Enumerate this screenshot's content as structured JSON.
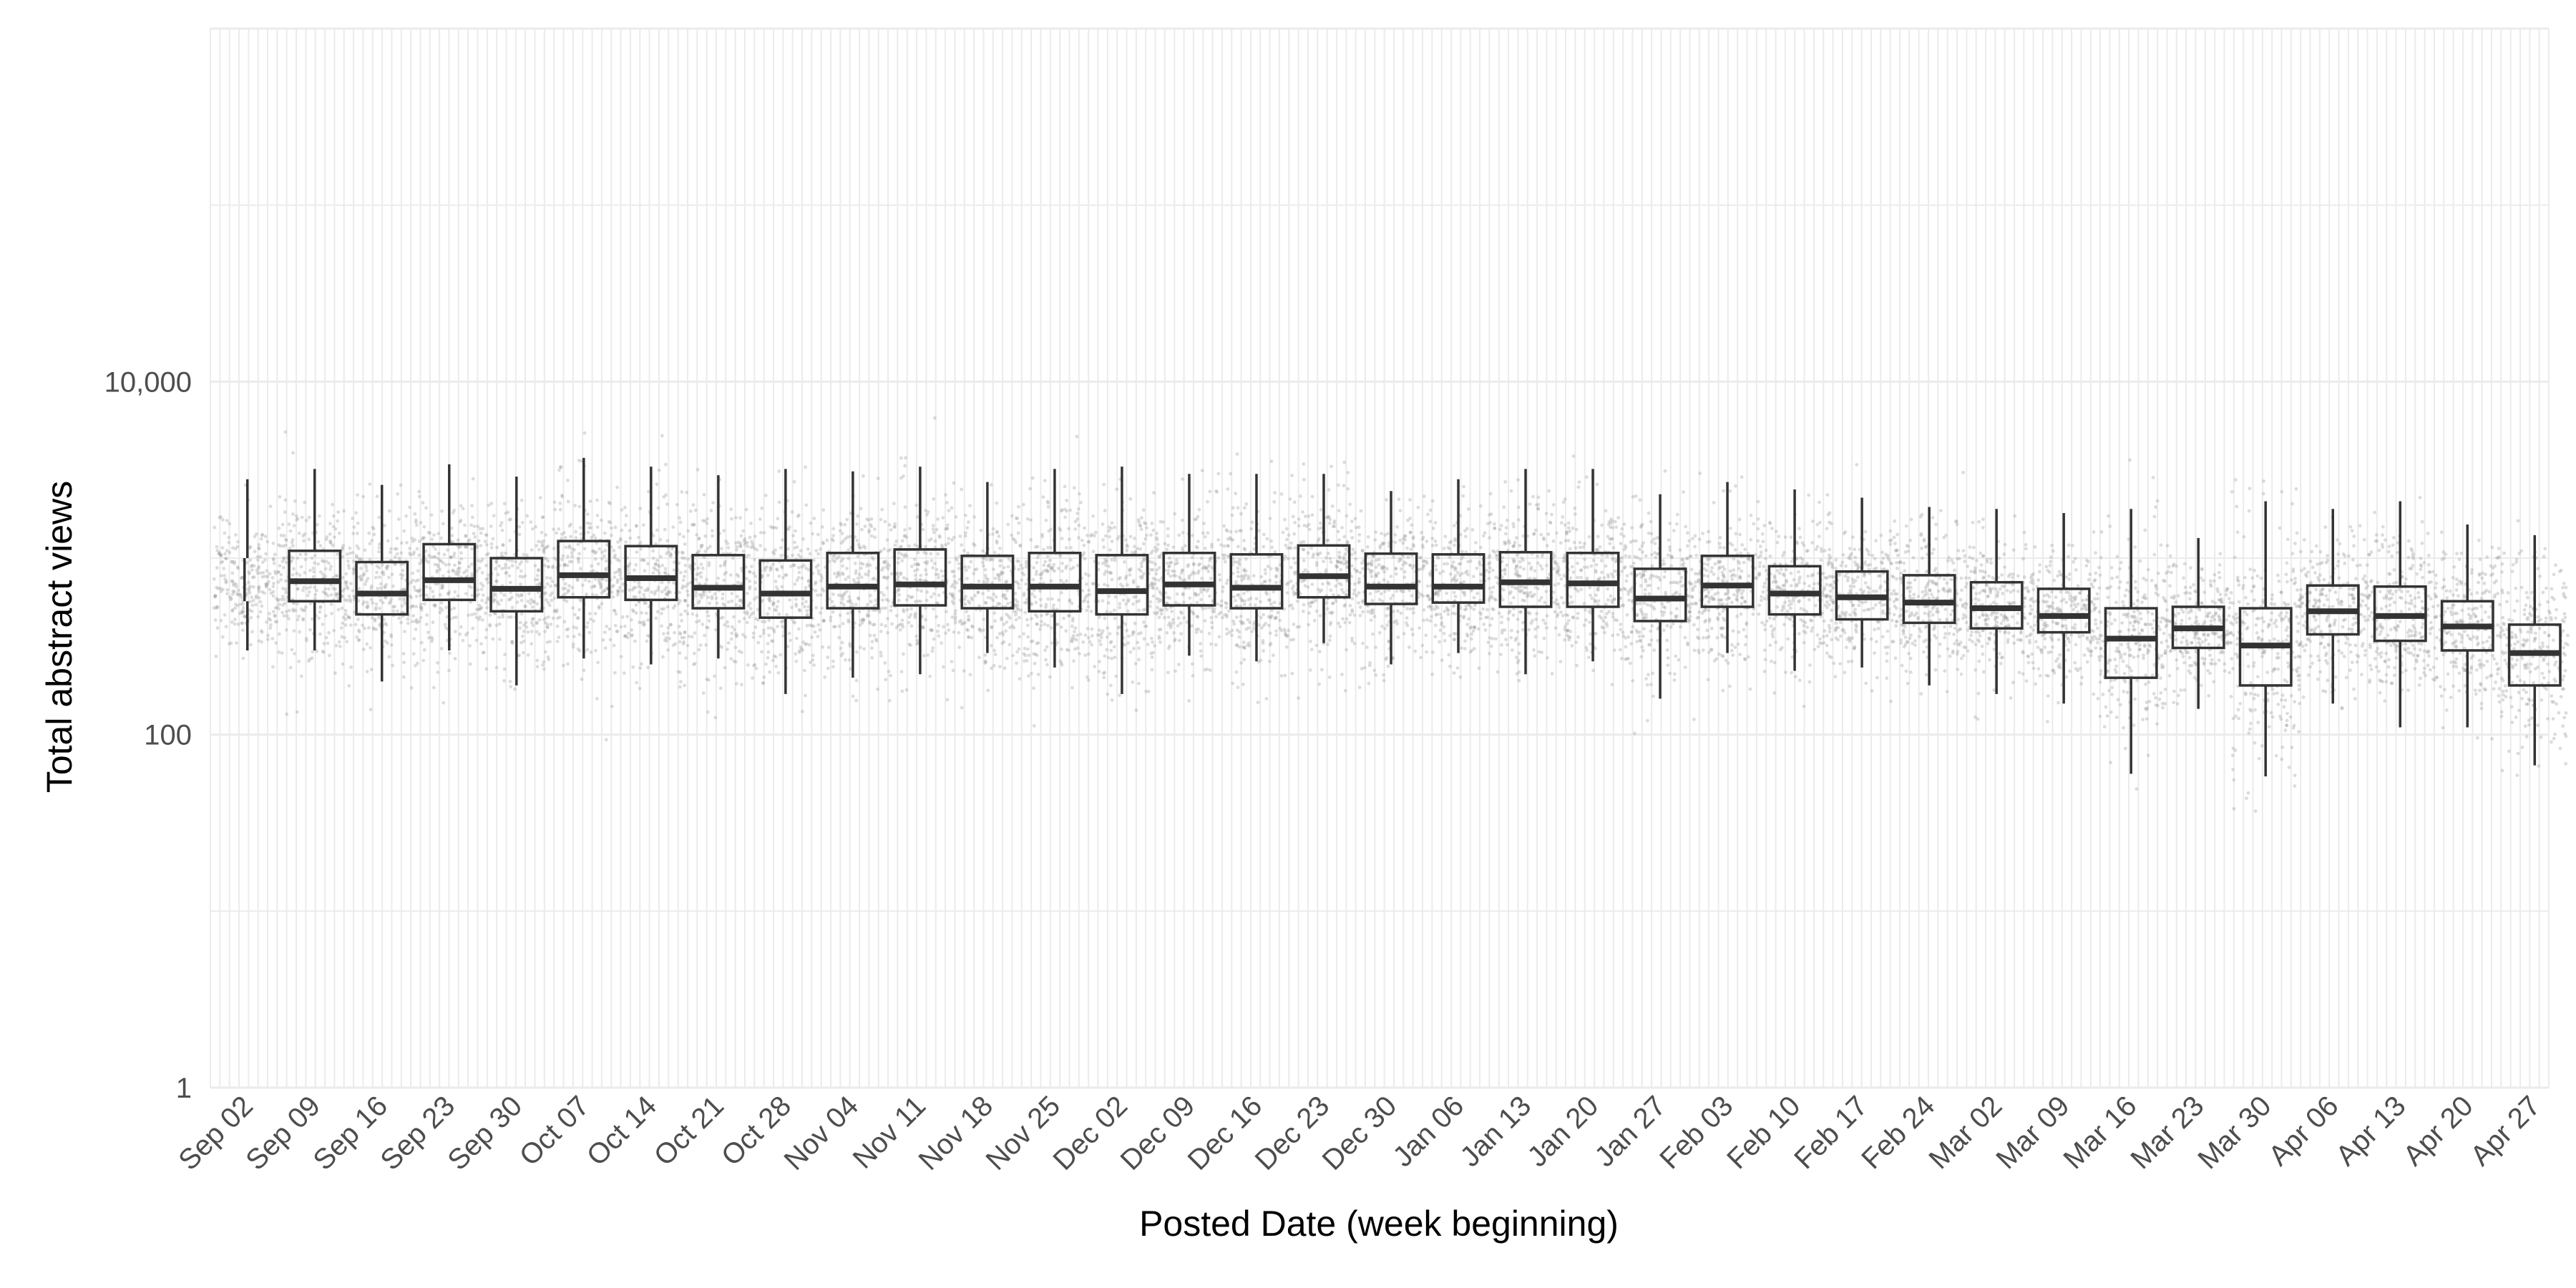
{
  "chart_data": {
    "type": "box",
    "xlabel": "Posted Date (week beginning)",
    "ylabel": "Total abstract views",
    "yscale": "log10",
    "ylim": [
      1,
      1000000
    ],
    "y_ticks": [
      {
        "value": 1,
        "label": "1"
      },
      {
        "value": 100,
        "label": "100"
      },
      {
        "value": 10000,
        "label": "10,000"
      }
    ],
    "grid": true,
    "points_style": "jittered grey semi-transparent dots behind each box",
    "colors": {
      "box": "#333333",
      "median": "#333333",
      "points": "#9a9a9a",
      "grid": "#ebebeb"
    },
    "categories": [
      "Sep 02",
      "Sep 09",
      "Sep 16",
      "Sep 23",
      "Sep 30",
      "Oct 07",
      "Oct 14",
      "Oct 21",
      "Oct 28",
      "Nov 04",
      "Nov 11",
      "Nov 18",
      "Nov 25",
      "Dec 02",
      "Dec 09",
      "Dec 16",
      "Dec 23",
      "Dec 30",
      "Jan 06",
      "Jan 13",
      "Jan 20",
      "Jan 27",
      "Feb 03",
      "Feb 10",
      "Feb 17",
      "Feb 24",
      "Mar 02",
      "Mar 09",
      "Mar 16",
      "Mar 23",
      "Mar 30",
      "Apr 06",
      "Apr 13",
      "Apr 20",
      "Apr 27"
    ],
    "boxes": [
      {
        "whisker_low": 300,
        "q1": 570,
        "median": 700,
        "q3": 1000,
        "whisker_high": 2800
      },
      {
        "whisker_low": 300,
        "q1": 570,
        "median": 740,
        "q3": 1100,
        "whisker_high": 3200
      },
      {
        "whisker_low": 200,
        "q1": 480,
        "median": 630,
        "q3": 950,
        "whisker_high": 2600
      },
      {
        "whisker_low": 300,
        "q1": 580,
        "median": 750,
        "q3": 1200,
        "whisker_high": 3400
      },
      {
        "whisker_low": 190,
        "q1": 500,
        "median": 670,
        "q3": 1000,
        "whisker_high": 2900
      },
      {
        "whisker_low": 270,
        "q1": 600,
        "median": 800,
        "q3": 1250,
        "whisker_high": 3700
      },
      {
        "whisker_low": 250,
        "q1": 580,
        "median": 770,
        "q3": 1170,
        "whisker_high": 3300
      },
      {
        "whisker_low": 270,
        "q1": 520,
        "median": 680,
        "q3": 1040,
        "whisker_high": 2950
      },
      {
        "whisker_low": 170,
        "q1": 460,
        "median": 630,
        "q3": 970,
        "whisker_high": 3200
      },
      {
        "whisker_low": 210,
        "q1": 520,
        "median": 690,
        "q3": 1070,
        "whisker_high": 3100
      },
      {
        "whisker_low": 220,
        "q1": 540,
        "median": 710,
        "q3": 1120,
        "whisker_high": 3300
      },
      {
        "whisker_low": 290,
        "q1": 520,
        "median": 690,
        "q3": 1030,
        "whisker_high": 2700
      },
      {
        "whisker_low": 240,
        "q1": 500,
        "median": 690,
        "q3": 1070,
        "whisker_high": 3200
      },
      {
        "whisker_low": 170,
        "q1": 480,
        "median": 650,
        "q3": 1040,
        "whisker_high": 3300
      },
      {
        "whisker_low": 280,
        "q1": 540,
        "median": 710,
        "q3": 1070,
        "whisker_high": 3000
      },
      {
        "whisker_low": 260,
        "q1": 520,
        "median": 680,
        "q3": 1050,
        "whisker_high": 3000
      },
      {
        "whisker_low": 330,
        "q1": 600,
        "median": 790,
        "q3": 1180,
        "whisker_high": 3000
      },
      {
        "whisker_low": 250,
        "q1": 550,
        "median": 690,
        "q3": 1060,
        "whisker_high": 2400
      },
      {
        "whisker_low": 290,
        "q1": 560,
        "median": 690,
        "q3": 1050,
        "whisker_high": 2800
      },
      {
        "whisker_low": 220,
        "q1": 530,
        "median": 730,
        "q3": 1080,
        "whisker_high": 3200
      },
      {
        "whisker_low": 260,
        "q1": 530,
        "median": 720,
        "q3": 1070,
        "whisker_high": 3200
      },
      {
        "whisker_low": 160,
        "q1": 440,
        "median": 590,
        "q3": 870,
        "whisker_high": 2300
      },
      {
        "whisker_low": 290,
        "q1": 530,
        "median": 700,
        "q3": 1030,
        "whisker_high": 2700
      },
      {
        "whisker_low": 230,
        "q1": 480,
        "median": 630,
        "q3": 900,
        "whisker_high": 2450
      },
      {
        "whisker_low": 240,
        "q1": 450,
        "median": 600,
        "q3": 840,
        "whisker_high": 2200
      },
      {
        "whisker_low": 190,
        "q1": 430,
        "median": 560,
        "q3": 800,
        "whisker_high": 1950
      },
      {
        "whisker_low": 170,
        "q1": 400,
        "median": 520,
        "q3": 730,
        "whisker_high": 1900
      },
      {
        "whisker_low": 150,
        "q1": 380,
        "median": 470,
        "q3": 670,
        "whisker_high": 1800
      },
      {
        "whisker_low": 60,
        "q1": 210,
        "median": 350,
        "q3": 520,
        "whisker_high": 1900
      },
      {
        "whisker_low": 140,
        "q1": 310,
        "median": 400,
        "q3": 530,
        "whisker_high": 1300
      },
      {
        "whisker_low": 58,
        "q1": 190,
        "median": 320,
        "q3": 520,
        "whisker_high": 2100
      },
      {
        "whisker_low": 150,
        "q1": 370,
        "median": 500,
        "q3": 700,
        "whisker_high": 1900
      },
      {
        "whisker_low": 110,
        "q1": 340,
        "median": 470,
        "q3": 690,
        "whisker_high": 2100
      },
      {
        "whisker_low": 110,
        "q1": 300,
        "median": 410,
        "q3": 570,
        "whisker_high": 1550
      },
      {
        "whisker_low": 67,
        "q1": 190,
        "median": 290,
        "q3": 420,
        "whisker_high": 1350
      }
    ]
  }
}
